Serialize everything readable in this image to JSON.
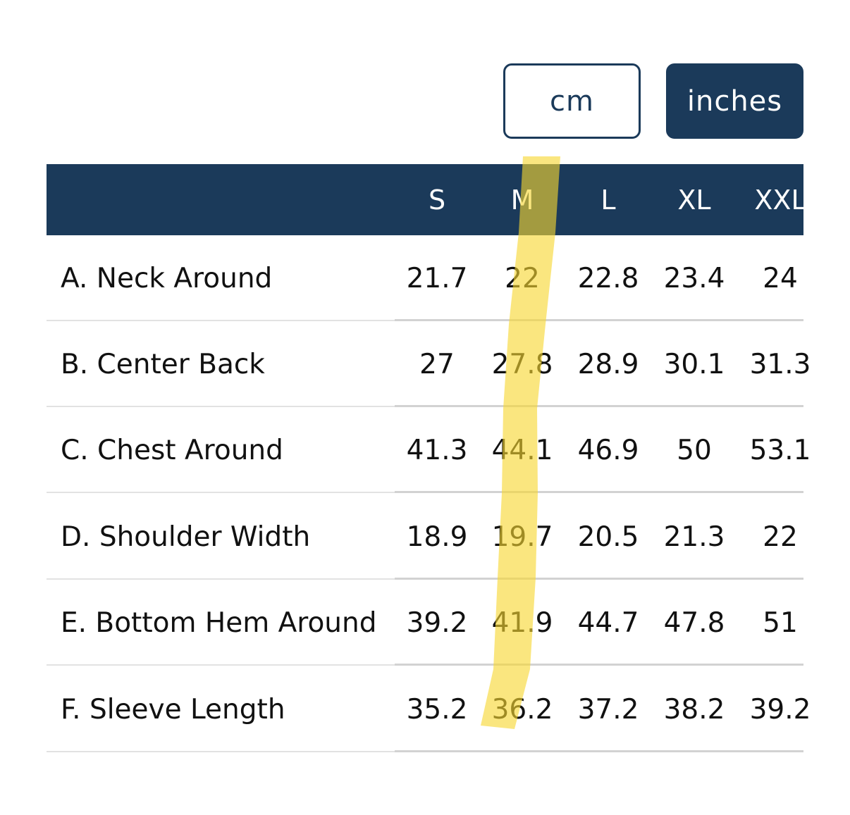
{
  "unit_toggle": {
    "cm_label": "cm",
    "inches_label": "inches",
    "selected": "inches"
  },
  "size_table": {
    "columns": [
      "S",
      "M",
      "L",
      "XL",
      "XXL"
    ],
    "rows": [
      {
        "label": "A. Neck Around",
        "values": [
          "21.7",
          "22",
          "22.8",
          "23.4",
          "24"
        ]
      },
      {
        "label": "B. Center Back",
        "values": [
          "27",
          "27.8",
          "28.9",
          "30.1",
          "31.3"
        ]
      },
      {
        "label": "C. Chest Around",
        "values": [
          "41.3",
          "44.1",
          "46.9",
          "50",
          "53.1"
        ]
      },
      {
        "label": "D. Shoulder Width",
        "values": [
          "18.9",
          "19.7",
          "20.5",
          "21.3",
          "22"
        ]
      },
      {
        "label": "E. Bottom Hem Around",
        "values": [
          "39.2",
          "41.9",
          "44.7",
          "47.8",
          "51"
        ]
      },
      {
        "label": "F. Sleeve Length",
        "values": [
          "35.2",
          "36.2",
          "37.2",
          "38.2",
          "39.2"
        ]
      }
    ]
  },
  "colors": {
    "accent": "#1b3a5a",
    "highlighter": "#f7d730"
  }
}
